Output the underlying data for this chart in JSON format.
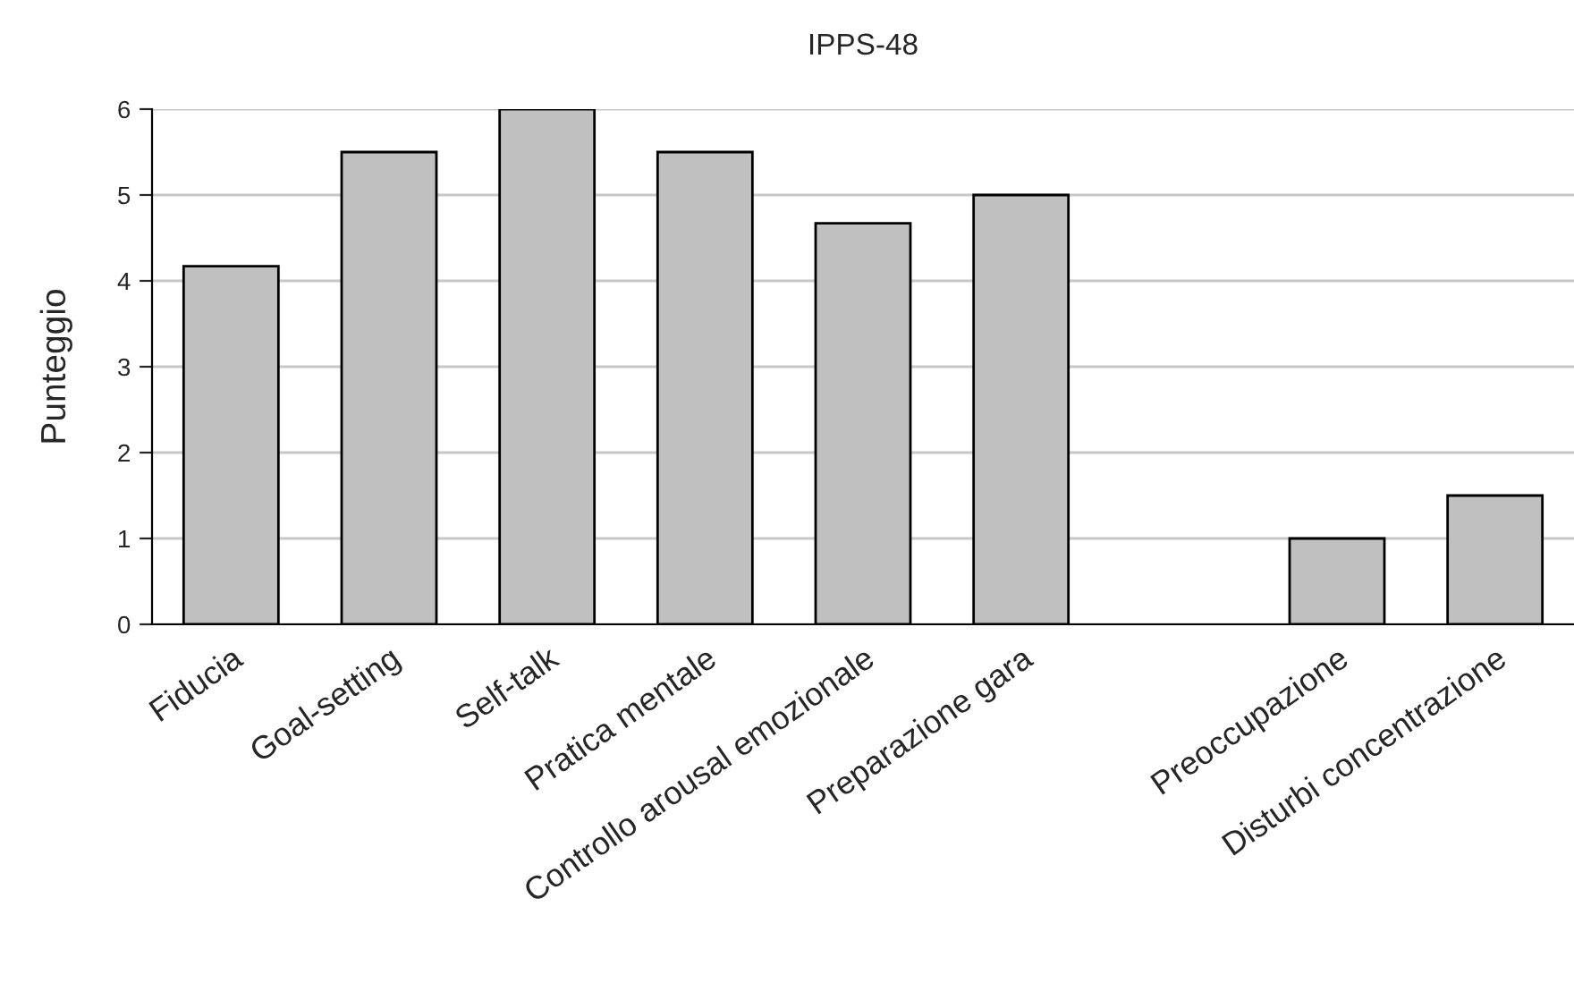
{
  "chart_data": {
    "type": "bar",
    "title": "IPPS-48",
    "ylabel": "Punteggio",
    "categories": [
      "Fiducia",
      "Goal-setting",
      "Self-talk",
      "Pratica mentale",
      "Controllo arousal emozionale",
      "Preparazione gara",
      null,
      "Preoccupazione",
      "Disturbi concentrazione"
    ],
    "values": [
      4.17,
      5.5,
      6,
      5.5,
      4.67,
      5,
      null,
      1,
      1.5
    ],
    "color": "#c0c0c0",
    "ylim": [
      0,
      6
    ],
    "yticks": [
      0,
      1,
      2,
      3,
      4,
      5,
      6
    ],
    "grid": "y"
  }
}
